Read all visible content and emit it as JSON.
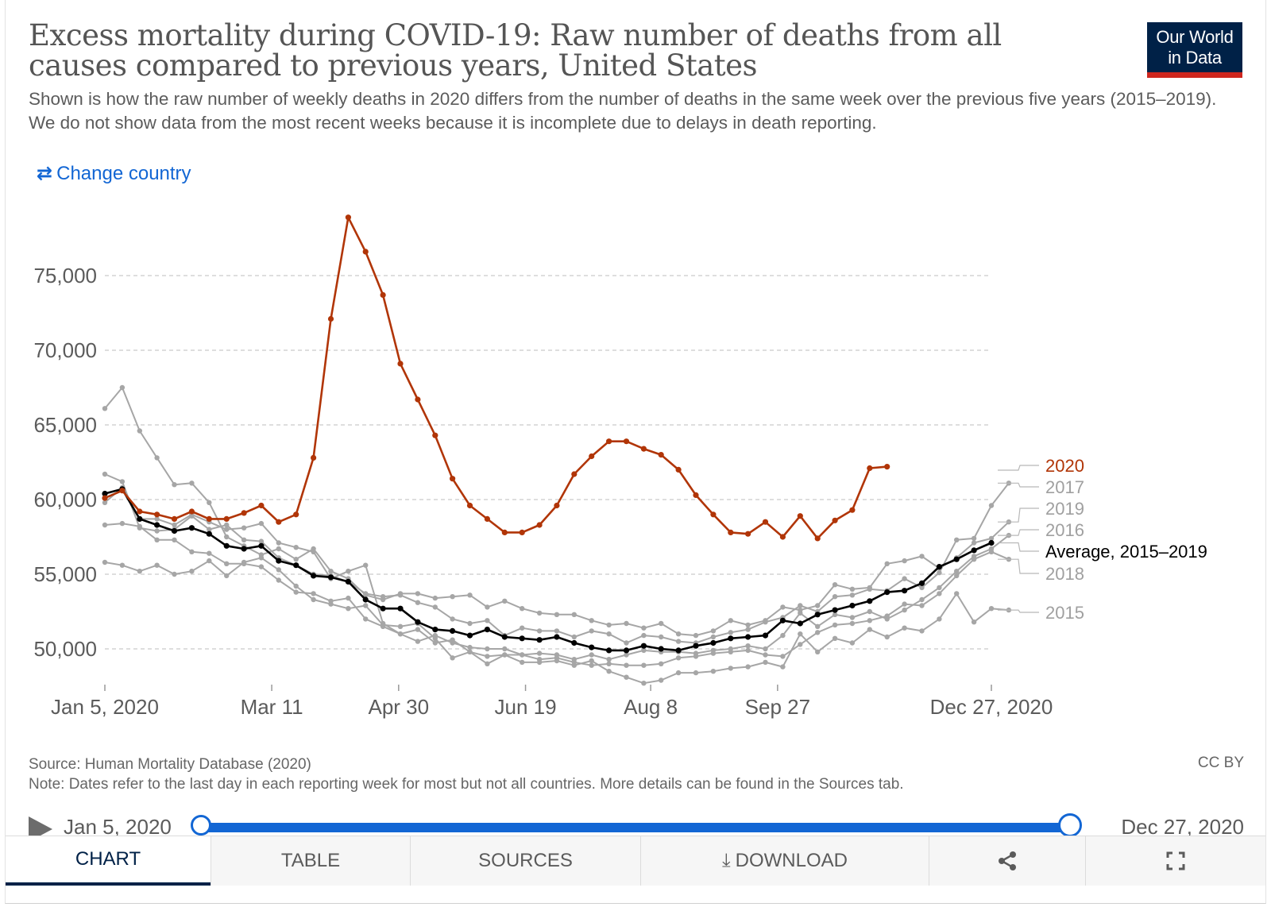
{
  "header": {
    "title": "Excess mortality during COVID-19: Raw number of deaths from all causes compared to previous years, United States",
    "subtitle": "Shown is how the raw number of weekly deaths in 2020 differs from the number of deaths in the same week over the previous five years (2015–2019). We do not show data from the most recent weeks because it is incomplete due to delays in death reporting.",
    "logo_line1": "Our World",
    "logo_line2": "in Data"
  },
  "controls": {
    "change_country_label": "Change country",
    "change_country_icon": "swap-arrows-icon"
  },
  "colors": {
    "y2020": "#b13507",
    "average": "#000000",
    "other": "#a6a6a6",
    "accent": "#1266d4",
    "navy": "#002147"
  },
  "chart_data": {
    "type": "line",
    "title": "Excess mortality during COVID-19: Raw number of deaths from all causes compared to previous years, United States",
    "xlabel": "",
    "ylabel": "",
    "x_start_week": 0,
    "x_end_week": 51,
    "ylim": [
      47500,
      80000
    ],
    "yticks": [
      50000,
      55000,
      60000,
      65000,
      70000,
      75000
    ],
    "ytick_labels": [
      "50,000",
      "55,000",
      "60,000",
      "65,000",
      "70,000",
      "75,000"
    ],
    "xticks": [
      {
        "week": 0,
        "label": "Jan 5, 2020"
      },
      {
        "week": 9.6,
        "label": "Mar 11"
      },
      {
        "week": 16.9,
        "label": "Apr 30"
      },
      {
        "week": 24.2,
        "label": "Jun 19"
      },
      {
        "week": 31.4,
        "label": "Aug 8"
      },
      {
        "week": 38.7,
        "label": "Sep 27"
      },
      {
        "week": 51,
        "label": "Dec 27, 2020"
      }
    ],
    "grid": true,
    "legend_position": "right",
    "series": [
      {
        "name": "2015",
        "key": "other",
        "values": [
          55800,
          55600,
          55200,
          55600,
          55000,
          55200,
          55900,
          54900,
          55800,
          56100,
          55300,
          54200,
          53300,
          53000,
          52700,
          52900,
          51600,
          51500,
          51700,
          50700,
          49400,
          49800,
          49000,
          49600,
          49100,
          49100,
          49200,
          48900,
          49200,
          48500,
          48100,
          47700,
          47900,
          48400,
          48400,
          48500,
          48700,
          48800,
          49100,
          48800,
          51000,
          49800,
          50700,
          50400,
          51300,
          50800,
          51400,
          51200,
          52000,
          53700,
          51800,
          52700,
          52600
        ]
      },
      {
        "name": "2016",
        "key": "other",
        "values": [
          58300,
          58400,
          58200,
          57300,
          57300,
          56500,
          56400,
          55700,
          55700,
          55500,
          54600,
          53800,
          53700,
          53200,
          53400,
          52000,
          51500,
          51000,
          50500,
          50900,
          50400,
          50100,
          50000,
          50000,
          49600,
          49700,
          49600,
          49300,
          49600,
          49300,
          49600,
          49900,
          49800,
          49800,
          49700,
          49900,
          50000,
          50200,
          50000,
          50900,
          52400,
          51500,
          52300,
          52100,
          52500,
          52000,
          52600,
          53300,
          54100,
          55200,
          56200,
          56700,
          57600
        ]
      },
      {
        "name": "2017",
        "key": "other",
        "values": [
          61700,
          61200,
          58100,
          57900,
          58000,
          58900,
          58000,
          58300,
          57300,
          57200,
          56100,
          55600,
          55000,
          54900,
          54500,
          53700,
          53500,
          53600,
          53100,
          52800,
          52000,
          51700,
          51900,
          50900,
          51400,
          51200,
          51200,
          50800,
          51200,
          51000,
          50400,
          50900,
          50800,
          50500,
          50400,
          50800,
          51100,
          51300,
          51800,
          52100,
          52900,
          52500,
          53500,
          53600,
          54000,
          53900,
          54700,
          54100,
          55100,
          57300,
          57400,
          59600,
          61100
        ]
      },
      {
        "name": "2018",
        "key": "other",
        "values": [
          59800,
          60800,
          58700,
          58700,
          58300,
          59000,
          58500,
          58000,
          58100,
          58400,
          57100,
          56800,
          56500,
          54700,
          55200,
          55600,
          51700,
          51000,
          51300,
          50400,
          50600,
          49800,
          49500,
          49600,
          49600,
          49300,
          49400,
          49100,
          48900,
          49000,
          48900,
          48900,
          49000,
          49400,
          49500,
          49700,
          49800,
          49900,
          49600,
          49500,
          50300,
          51100,
          51600,
          51700,
          51900,
          52200,
          53000,
          52900,
          53700,
          54900,
          56000,
          56500,
          56000
        ]
      },
      {
        "name": "2019",
        "key": "other",
        "values": [
          66100,
          67500,
          64600,
          62800,
          61000,
          61100,
          59800,
          57500,
          56900,
          56300,
          56700,
          56000,
          56700,
          55200,
          54700,
          53600,
          53300,
          53700,
          53700,
          53400,
          53500,
          53600,
          52800,
          53200,
          52700,
          52400,
          52300,
          52300,
          51900,
          51600,
          51700,
          51400,
          51700,
          51000,
          50900,
          51200,
          51900,
          51600,
          51900,
          52800,
          52600,
          52900,
          54300,
          54000,
          54100,
          55700,
          55900,
          56200,
          55400,
          56100,
          57100,
          57400,
          58500
        ]
      },
      {
        "name": "Average, 2015–2019",
        "key": "average",
        "values": [
          60400,
          60700,
          58700,
          58300,
          57900,
          58100,
          57700,
          56900,
          56700,
          56900,
          55900,
          55600,
          54900,
          54800,
          54500,
          53300,
          52700,
          52700,
          51800,
          51300,
          51200,
          50900,
          51300,
          50800,
          50700,
          50600,
          50800,
          50400,
          50100,
          49900,
          49900,
          50200,
          50000,
          49900,
          50200,
          50400,
          50700,
          50800,
          50900,
          51900,
          51700,
          52300,
          52600,
          52900,
          53200,
          53800,
          53900,
          54400,
          55500,
          56000,
          56600,
          57100
        ]
      },
      {
        "name": "2020",
        "key": "y2020",
        "values": [
          60100,
          60600,
          59200,
          59000,
          58700,
          59200,
          58700,
          58700,
          59100,
          59600,
          58500,
          59000,
          62800,
          72100,
          78900,
          76600,
          73700,
          69100,
          66700,
          64300,
          61400,
          59600,
          58700,
          57800,
          57800,
          58300,
          59600,
          61700,
          62900,
          63900,
          63900,
          63400,
          63000,
          62000,
          60300,
          59000,
          57800,
          57700,
          58500,
          57500,
          58900,
          57400,
          58600,
          59300,
          62100,
          62200
        ]
      }
    ]
  },
  "footer": {
    "source": "Source: Human Mortality Database (2020)",
    "note": "Note: Dates refer to the last day in each reporting week for most but not all countries. More details can be found in the Sources tab.",
    "license": "CC BY"
  },
  "timeline": {
    "start_label": "Jan 5, 2020",
    "end_label": "Dec 27, 2020",
    "play_icon": "play-icon"
  },
  "tabs": [
    {
      "id": "chart",
      "label": "CHART"
    },
    {
      "id": "table",
      "label": "TABLE"
    },
    {
      "id": "sources",
      "label": "SOURCES"
    },
    {
      "id": "download",
      "label": "DOWNLOAD",
      "icon": "download-icon"
    },
    {
      "id": "share",
      "label": "",
      "icon": "share-icon"
    },
    {
      "id": "fullscreen",
      "label": "",
      "icon": "fullscreen-icon"
    }
  ]
}
